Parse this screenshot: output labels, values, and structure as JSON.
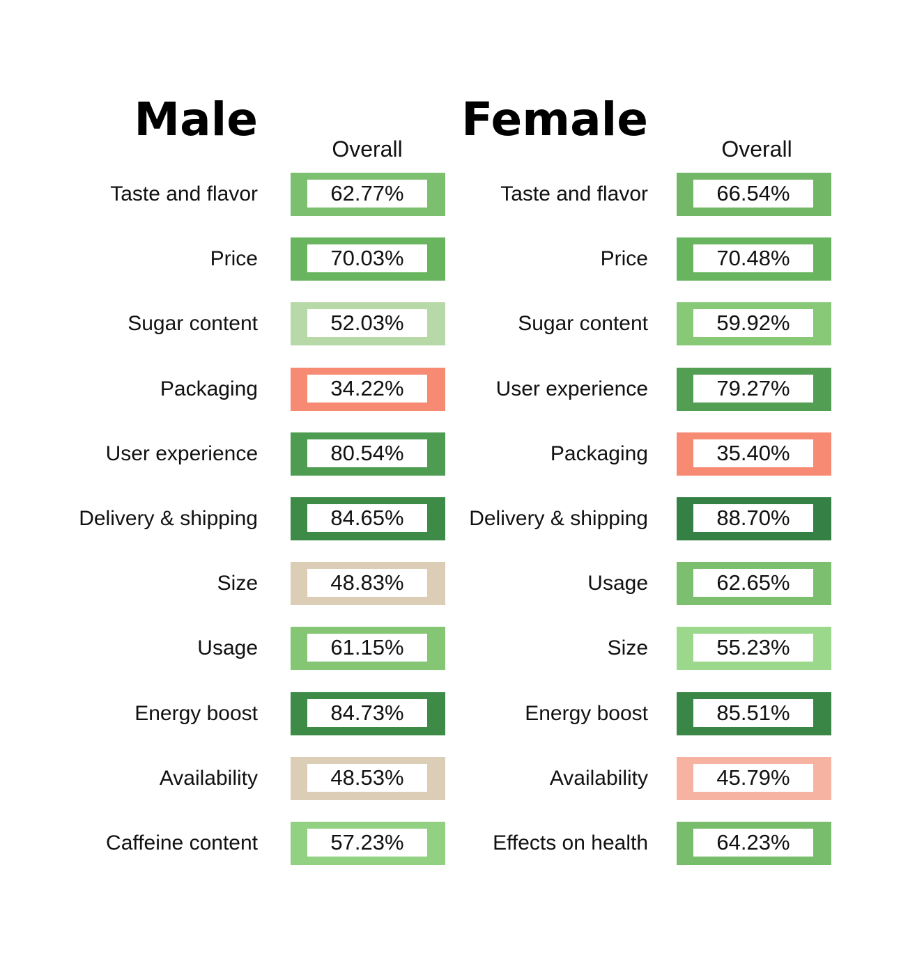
{
  "chart_data": {
    "type": "table",
    "column_header": "Overall",
    "panels": [
      {
        "title": "Male",
        "column_header": "Overall",
        "rows": [
          {
            "label": "Taste and flavor",
            "value": 62.77,
            "display": "62.77%",
            "color": "#7cc06f"
          },
          {
            "label": "Price",
            "value": 70.03,
            "display": "70.03%",
            "color": "#68b45f"
          },
          {
            "label": "Sugar content",
            "value": 52.03,
            "display": "52.03%",
            "color": "#b7d9a8"
          },
          {
            "label": "Packaging",
            "value": 34.22,
            "display": "34.22%",
            "color": "#f78a72"
          },
          {
            "label": "User experience",
            "value": 80.54,
            "display": "80.54%",
            "color": "#4e9c52"
          },
          {
            "label": "Delivery & shipping",
            "value": 84.65,
            "display": "84.65%",
            "color": "#3d8b47"
          },
          {
            "label": "Size",
            "value": 48.83,
            "display": "48.83%",
            "color": "#dccdb7"
          },
          {
            "label": "Usage",
            "value": 61.15,
            "display": "61.15%",
            "color": "#84c674"
          },
          {
            "label": "Energy boost",
            "value": 84.73,
            "display": "84.73%",
            "color": "#3d8b47"
          },
          {
            "label": "Availability",
            "value": 48.53,
            "display": "48.53%",
            "color": "#dccdb7"
          },
          {
            "label": "Caffeine content",
            "value": 57.23,
            "display": "57.23%",
            "color": "#92d181"
          }
        ]
      },
      {
        "title": "Female",
        "column_header": "Overall",
        "rows": [
          {
            "label": "Taste and flavor",
            "value": 66.54,
            "display": "66.54%",
            "color": "#72b765"
          },
          {
            "label": "Price",
            "value": 70.48,
            "display": "70.48%",
            "color": "#68b45f"
          },
          {
            "label": "Sugar content",
            "value": 59.92,
            "display": "59.92%",
            "color": "#87c977"
          },
          {
            "label": "User experience",
            "value": 79.27,
            "display": "79.27%",
            "color": "#529f54"
          },
          {
            "label": "Packaging",
            "value": 35.4,
            "display": "35.40%",
            "color": "#f78a72"
          },
          {
            "label": "Delivery & shipping",
            "value": 88.7,
            "display": "88.70%",
            "color": "#358044"
          },
          {
            "label": "Usage",
            "value": 62.65,
            "display": "62.65%",
            "color": "#7cc06f"
          },
          {
            "label": "Size",
            "value": 55.23,
            "display": "55.23%",
            "color": "#9bd88b"
          },
          {
            "label": "Energy boost",
            "value": 85.51,
            "display": "85.51%",
            "color": "#3a8646"
          },
          {
            "label": "Availability",
            "value": 45.79,
            "display": "45.79%",
            "color": "#f7b3a2"
          },
          {
            "label": "Effects on health",
            "value": 64.23,
            "display": "64.23%",
            "color": "#78bd6b"
          }
        ]
      }
    ]
  }
}
